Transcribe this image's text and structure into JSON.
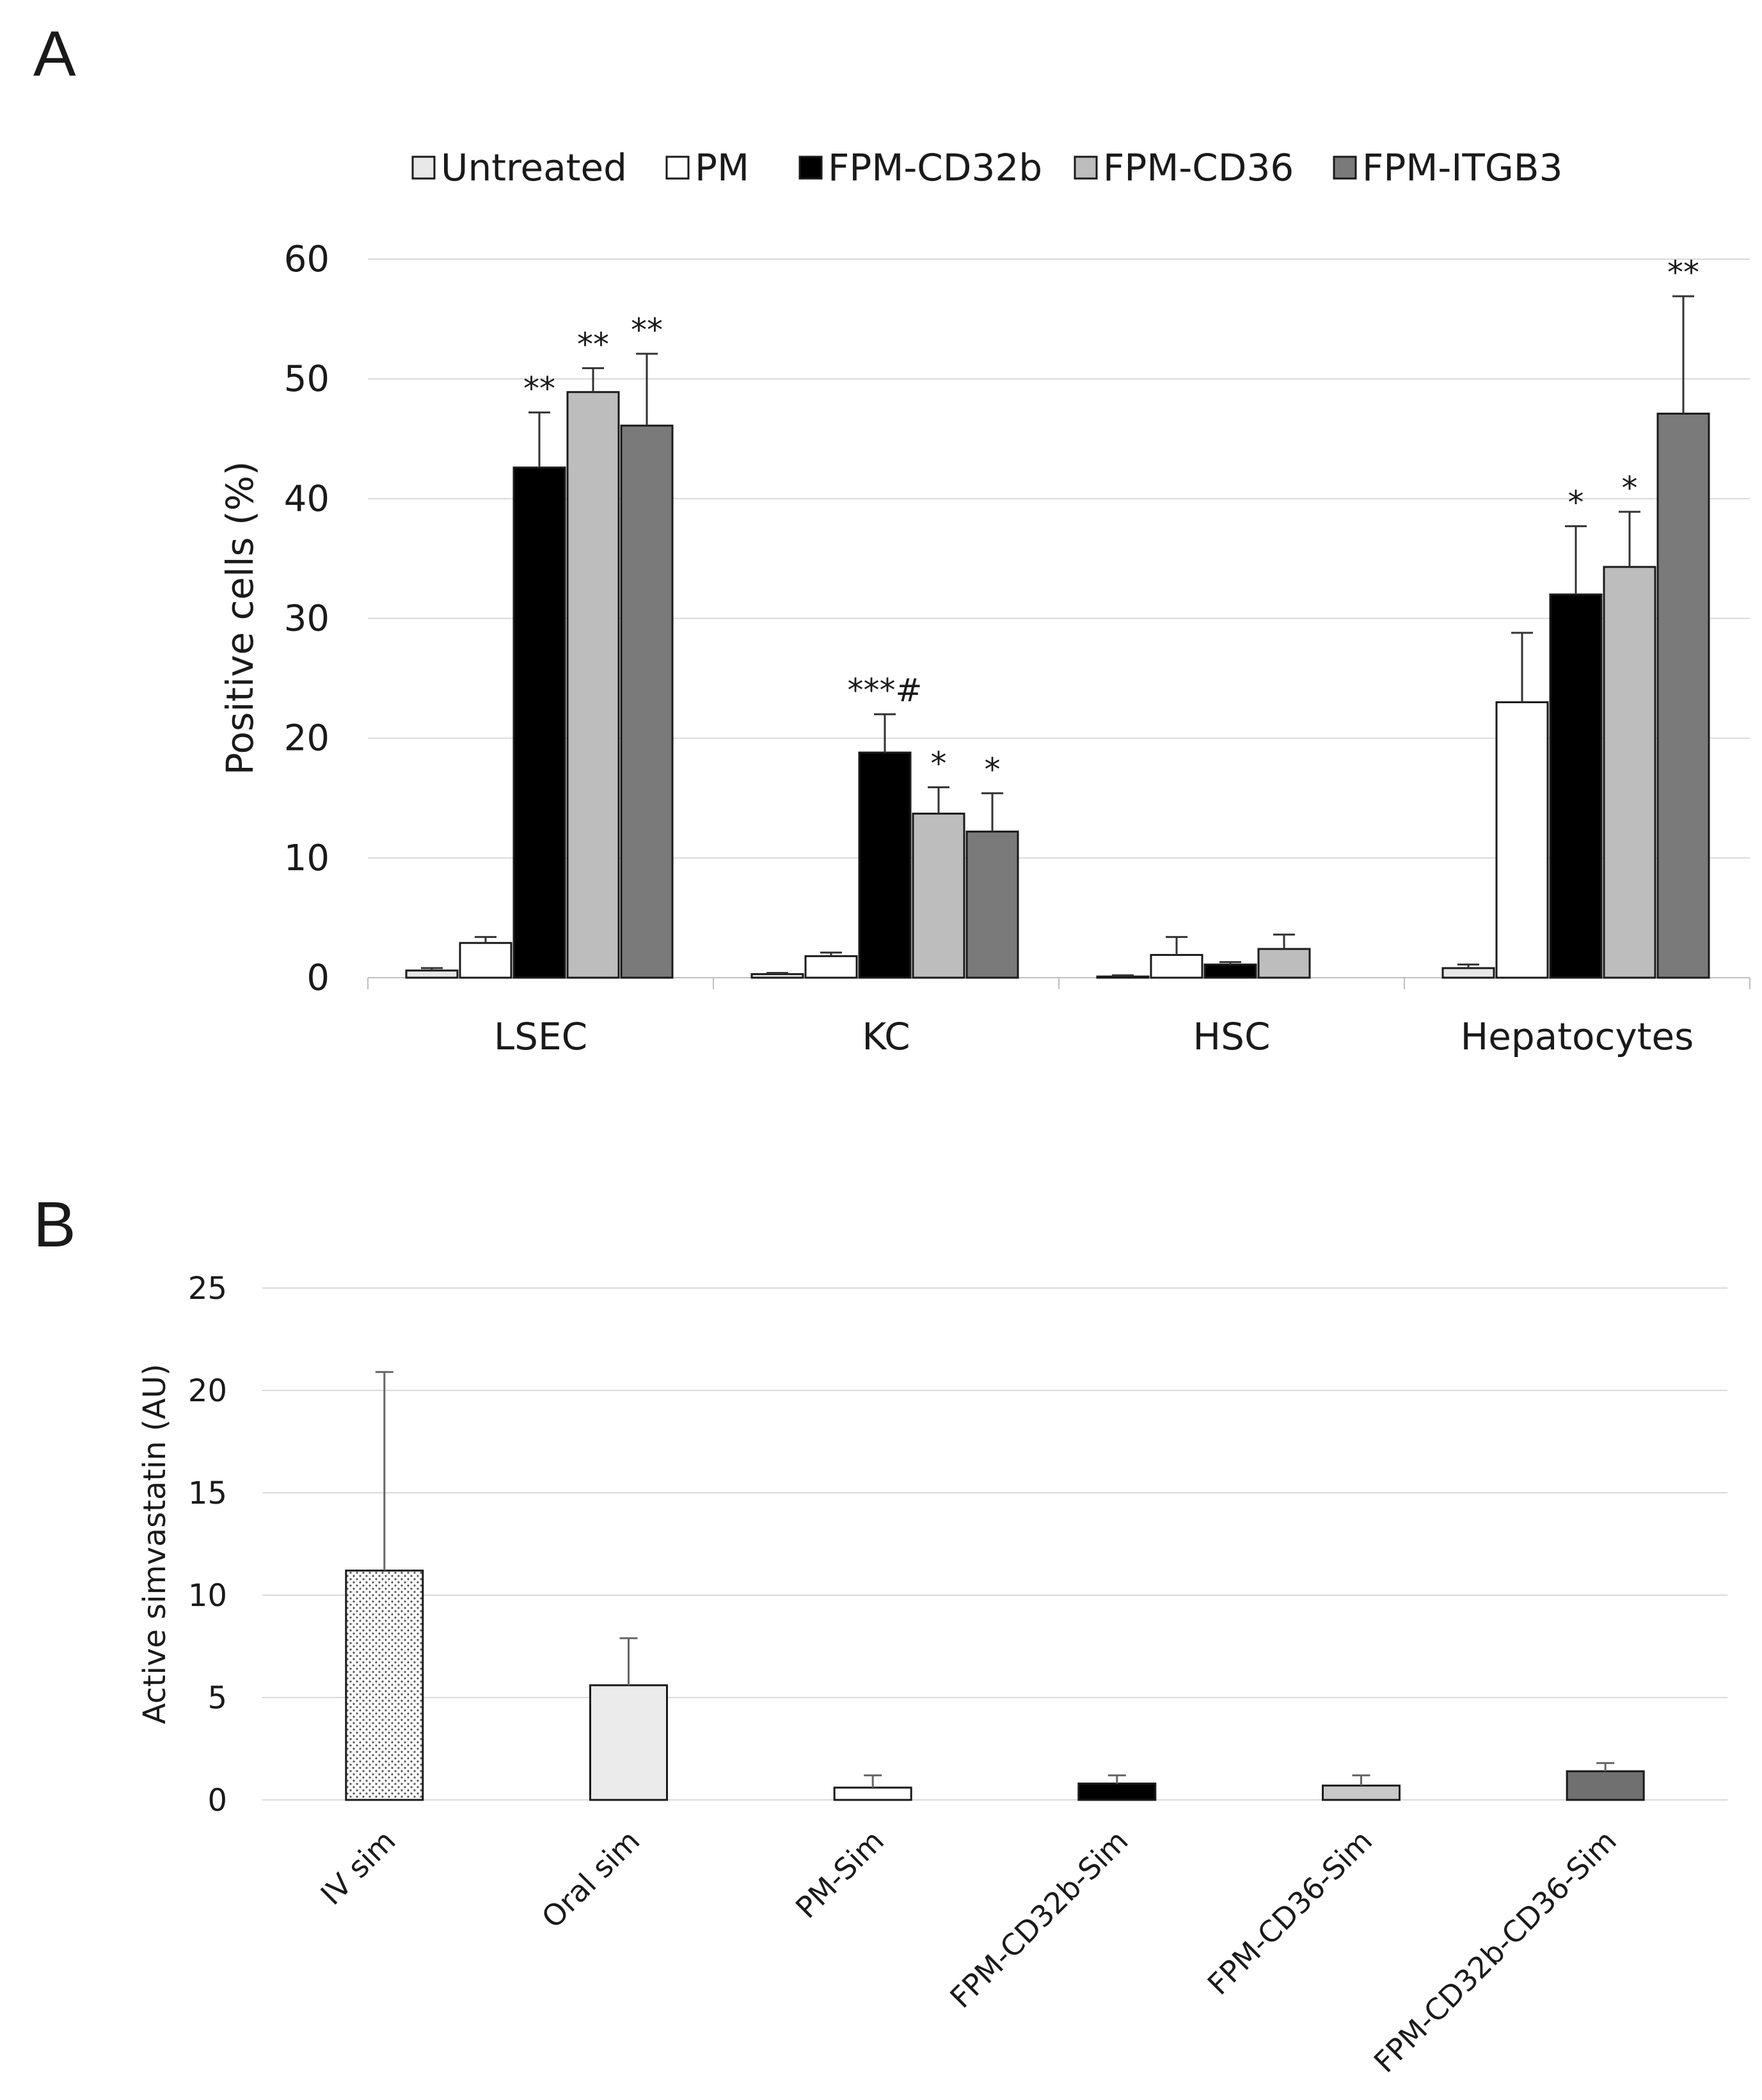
{
  "chart_data": [
    {
      "panel_label": "A",
      "type": "bar",
      "ylabel": "Positive cells (%)",
      "xlabel": "",
      "ylim": [
        0,
        60
      ],
      "yticks": [
        0,
        10,
        20,
        30,
        40,
        50,
        60
      ],
      "grid": true,
      "legend_position": "top",
      "categories": [
        "LSEC",
        "KC",
        "HSC",
        "Hepatocytes"
      ],
      "series": [
        {
          "name": "Untreated",
          "color": "#e8e8e8",
          "values": [
            0.6,
            0.3,
            0.1,
            0.8
          ],
          "errors": [
            0.2,
            0.1,
            0.1,
            0.3
          ]
        },
        {
          "name": "PM",
          "color": "#ffffff",
          "values": [
            2.9,
            1.8,
            1.9,
            23.0
          ],
          "errors": [
            0.5,
            0.3,
            1.5,
            5.8
          ]
        },
        {
          "name": "FPM-CD32b",
          "color": "#000000",
          "values": [
            42.6,
            18.8,
            1.1,
            32.0
          ],
          "errors": [
            4.6,
            3.2,
            0.2,
            5.7
          ]
        },
        {
          "name": "FPM-CD36",
          "color": "#bdbdbd",
          "values": [
            48.9,
            13.7,
            2.4,
            34.3
          ],
          "errors": [
            2.0,
            2.2,
            1.2,
            4.6
          ]
        },
        {
          "name": "FPM-ITGB3",
          "color": "#7a7a7a",
          "values": [
            46.1,
            12.2,
            null,
            47.1
          ],
          "errors": [
            6.0,
            3.2,
            null,
            9.8
          ]
        }
      ],
      "annotations": [
        {
          "category": "LSEC",
          "series": "FPM-CD32b",
          "text": "**"
        },
        {
          "category": "LSEC",
          "series": "FPM-CD36",
          "text": "**"
        },
        {
          "category": "LSEC",
          "series": "FPM-ITGB3",
          "text": "**"
        },
        {
          "category": "KC",
          "series": "FPM-CD32b",
          "text": "***#"
        },
        {
          "category": "KC",
          "series": "FPM-CD36",
          "text": "*"
        },
        {
          "category": "KC",
          "series": "FPM-ITGB3",
          "text": "*"
        },
        {
          "category": "Hepatocytes",
          "series": "FPM-CD32b",
          "text": "*"
        },
        {
          "category": "Hepatocytes",
          "series": "FPM-CD36",
          "text": "*"
        },
        {
          "category": "Hepatocytes",
          "series": "FPM-ITGB3",
          "text": "**"
        }
      ]
    },
    {
      "panel_label": "B",
      "type": "bar",
      "ylabel": "Active simvastatin (AU)",
      "xlabel": "",
      "ylim": [
        0,
        25
      ],
      "yticks": [
        0,
        5,
        10,
        15,
        20,
        25
      ],
      "grid": true,
      "categories": [
        "IV sim",
        "Oral sim",
        "PM-Sim",
        "FPM-CD32b-Sim",
        "FPM-CD36-Sim",
        "FPM-CD32b-CD36-Sim"
      ],
      "values": [
        11.2,
        5.6,
        0.6,
        0.8,
        0.7,
        1.4
      ],
      "errors": [
        9.7,
        2.3,
        0.6,
        0.4,
        0.5,
        0.4
      ],
      "fills": [
        "dots",
        "#ebebeb",
        "#ffffff",
        "#000000",
        "#c8c8c8",
        "#707070"
      ]
    }
  ]
}
